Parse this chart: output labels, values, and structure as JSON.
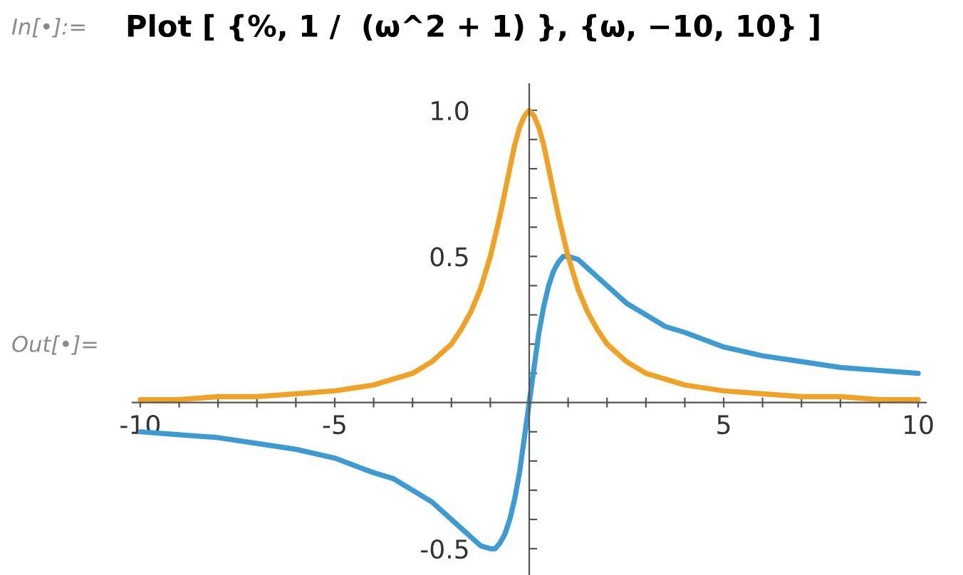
{
  "chart_data": {
    "type": "line",
    "title": "Plot [ {%, 1 /  (ω^2 + 1) }, {ω, −10, 10} ]",
    "annotations": [
      "In[•]:=",
      "Out[•]="
    ],
    "x": [
      -10,
      -9,
      -8,
      -7,
      -6,
      -5,
      -4,
      -3.5,
      -3,
      -2.5,
      -2,
      -1.75,
      -1.5,
      -1.25,
      -1,
      -0.875,
      -0.75,
      -0.625,
      -0.5,
      -0.375,
      -0.25,
      -0.125,
      0,
      0.125,
      0.25,
      0.375,
      0.5,
      0.625,
      0.75,
      0.875,
      1,
      1.25,
      1.5,
      1.75,
      2,
      2.5,
      3,
      3.5,
      4,
      5,
      6,
      7,
      8,
      9,
      10
    ],
    "series": [
      {
        "color": "#3c9bd2",
        "values": [
          -0.1,
          -0.11,
          -0.12,
          -0.14,
          -0.16,
          -0.19,
          -0.24,
          -0.26,
          -0.3,
          -0.34,
          -0.4,
          -0.43,
          -0.46,
          -0.49,
          -0.5,
          -0.5,
          -0.48,
          -0.45,
          -0.4,
          -0.33,
          -0.24,
          -0.12,
          0,
          0.12,
          0.24,
          0.33,
          0.4,
          0.45,
          0.48,
          0.5,
          0.5,
          0.49,
          0.46,
          0.43,
          0.4,
          0.34,
          0.3,
          0.26,
          0.24,
          0.19,
          0.16,
          0.14,
          0.12,
          0.11,
          0.1
        ]
      },
      {
        "color": "#f2a223",
        "values": [
          0.01,
          0.01,
          0.02,
          0.02,
          0.03,
          0.04,
          0.06,
          0.08,
          0.1,
          0.14,
          0.2,
          0.25,
          0.31,
          0.39,
          0.5,
          0.57,
          0.64,
          0.72,
          0.8,
          0.88,
          0.94,
          0.98,
          1.0,
          0.98,
          0.94,
          0.88,
          0.8,
          0.72,
          0.64,
          0.57,
          0.5,
          0.39,
          0.31,
          0.25,
          0.2,
          0.14,
          0.1,
          0.08,
          0.06,
          0.04,
          0.03,
          0.02,
          0.02,
          0.01,
          0.01
        ]
      }
    ],
    "xlim": [
      -10.2,
      10.2
    ],
    "ylim": [
      -0.59,
      1.09
    ],
    "xticks": [
      -10,
      {
        "value": -9,
        "label": null
      },
      {
        "value": -8,
        "label": null
      },
      {
        "value": -7,
        "label": null
      },
      {
        "value": -6,
        "label": null
      },
      -5,
      {
        "value": -4,
        "label": null
      },
      {
        "value": -3,
        "label": null
      },
      {
        "value": -2,
        "label": null
      },
      {
        "value": -1,
        "label": null
      },
      {
        "value": 1,
        "label": null
      },
      {
        "value": 2,
        "label": null
      },
      {
        "value": 3,
        "label": null
      },
      {
        "value": 4,
        "label": null
      },
      5,
      {
        "value": 6,
        "label": null
      },
      {
        "value": 7,
        "label": null
      },
      {
        "value": 8,
        "label": null
      },
      {
        "value": 9,
        "label": null
      },
      10
    ],
    "yticks": [
      -0.5,
      {
        "value": -0.4,
        "label": null
      },
      {
        "value": -0.3,
        "label": null
      },
      {
        "value": -0.2,
        "label": null
      },
      {
        "value": -0.1,
        "label": null
      },
      {
        "value": 0.1,
        "label": null
      },
      {
        "value": 0.2,
        "label": null
      },
      {
        "value": 0.3,
        "label": null
      },
      {
        "value": 0.4,
        "label": null
      },
      0.5,
      {
        "value": 0.6,
        "label": null
      },
      {
        "value": 0.7,
        "label": null
      },
      {
        "value": 0.8,
        "label": null
      },
      {
        "value": 0.9,
        "label": null
      },
      {
        "value": 1.0,
        "label": "1.0"
      }
    ],
    "grid": false,
    "marker": "none",
    "line_style": "solid"
  }
}
